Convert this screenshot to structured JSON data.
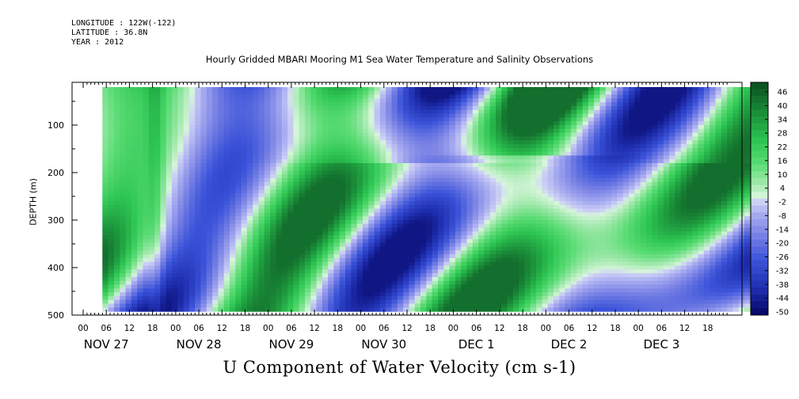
{
  "header": {
    "longitude": "LONGITUDE : 122W(-122)",
    "latitude": "LATITUDE : 36.8N",
    "year": "YEAR : 2012"
  },
  "chart_data": {
    "type": "heatmap",
    "title": "Hourly Gridded MBARI Mooring M1 Sea Water Temperature and Salinity Observations",
    "xlabel": "U Component of Water Velocity (cm s-1)",
    "ylabel": "DEPTH (m)",
    "y_ticks": [
      100,
      200,
      300,
      400,
      500
    ],
    "ylim": [
      500,
      10
    ],
    "y_reversed": true,
    "hour_ticks": [
      "00",
      "06",
      "12",
      "18",
      "00",
      "06",
      "12",
      "18",
      "00",
      "06",
      "12",
      "18",
      "00",
      "06",
      "12",
      "18",
      "00",
      "06",
      "12",
      "18",
      "00",
      "06",
      "12",
      "18",
      "00",
      "06",
      "12",
      "18"
    ],
    "date_labels": [
      "NOV 27",
      "NOV 28",
      "NOV 29",
      "NOV 30",
      "DEC  1",
      "DEC  2",
      "DEC  3"
    ],
    "colorbar": {
      "ticks": [
        "46",
        "40",
        "34",
        "28",
        "22",
        "16",
        "10",
        "4",
        "-2",
        "-8",
        "-14",
        "-20",
        "-26",
        "-32",
        "-38",
        "-44",
        "-50"
      ],
      "range": [
        -50,
        52
      ],
      "colors": {
        "deep_negative": "#060665",
        "negative": "#3b53d9",
        "weak_negative": "#b6b9f3",
        "weak_positive": "#b7f2bd",
        "positive": "#2ed255",
        "strong_positive": "#0e5c26"
      }
    },
    "data_extent_hours": [
      29,
      196
    ],
    "value_range": [
      -45,
      45
    ]
  }
}
